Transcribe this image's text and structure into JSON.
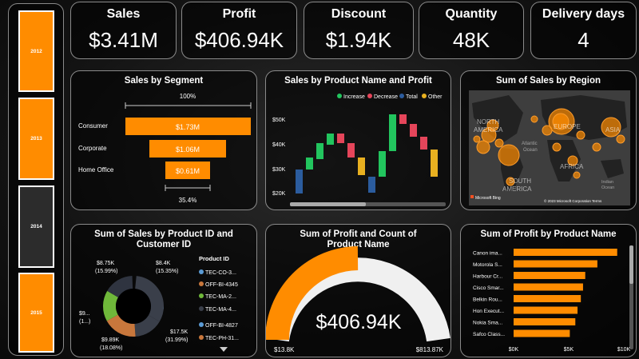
{
  "slicer": {
    "years": [
      {
        "label": "2012",
        "selected": true
      },
      {
        "label": "2013",
        "selected": true
      },
      {
        "label": "2014",
        "selected": false
      },
      {
        "label": "2015",
        "selected": true
      }
    ]
  },
  "kpis": [
    {
      "label": "Sales",
      "value": "$3.41M"
    },
    {
      "label": "Profit",
      "value": "$406.94K"
    },
    {
      "label": "Discount",
      "value": "$1.94K"
    },
    {
      "label": "Quantity",
      "value": "48K"
    },
    {
      "label": "Delivery days",
      "value": "4"
    }
  ],
  "colors": {
    "orange": "#ff8c00",
    "green": "#22c55e",
    "red": "#e5455a",
    "blue": "#2b5c9e",
    "yellow": "#e8b020",
    "grey": "#3a3f4a"
  },
  "segment_funnel": {
    "title": "Sales by Segment",
    "top_pct": "100%",
    "bottom_pct": "35.4%",
    "rows": [
      {
        "name": "Consumer",
        "label": "$1.73M",
        "value": 1.73
      },
      {
        "name": "Corporate",
        "label": "$1.06M",
        "value": 1.06
      },
      {
        "name": "Home Office",
        "label": "$0.61M",
        "value": 0.61
      }
    ]
  },
  "waterfall": {
    "title": "Sales by Product Name and Profit",
    "legend": [
      "Increase",
      "Decrease",
      "Total",
      "Other"
    ],
    "yticks": [
      "$50K",
      "$40K",
      "$30K",
      "$20K"
    ]
  },
  "region_map": {
    "title": "Sum of Sales by Region",
    "labels": [
      "NORTH",
      "AMERICA",
      "EUROPE",
      "ASIA",
      "AFRICA",
      "SOUTH",
      "AMERICA",
      "Atlantic",
      "Ocean",
      "Indian",
      "Ocean"
    ],
    "footer_left": "Microsoft Bing",
    "footer_right": "© 2023 Microsoft Corporation  Terms"
  },
  "donut": {
    "title": "Sum of Sales by Product ID and Customer ID",
    "legend_title": "Product ID",
    "legend": [
      "TEC-CO-3...",
      "OFF-BI-4345",
      "TEC-MA-2...",
      "TEC-MA-4...",
      "OFF-BI-4827",
      "TEC-PH-31..."
    ],
    "labels": [
      {
        "l1": "$8.75K",
        "l2": "(15.99%)"
      },
      {
        "l1": "$8.4K",
        "l2": "(15.35%)"
      },
      {
        "l1": "$9...",
        "l2": "(1...)"
      },
      {
        "l1": "$9.89K",
        "l2": "(18.08%)"
      },
      {
        "l1": "$17.5K",
        "l2": "(31.99%)"
      }
    ]
  },
  "gauge": {
    "title": "Sum of Profit and Count of Product Name",
    "value": "$406.94K",
    "min": "$13.8K",
    "max": "$813.87K"
  },
  "chart_data": {
    "type": "bar",
    "title": "Sum of Profit by Product Name",
    "categories": [
      "Canon ima...",
      "Motorola S...",
      "Harbour Cr...",
      "Cisco Smar...",
      "Belkin Rou...",
      "Hon Execut...",
      "Nokia Sma...",
      "Safco Class..."
    ],
    "values": [
      9.4,
      7.6,
      6.5,
      6.3,
      6.1,
      5.8,
      5.6,
      5.1
    ],
    "xticks": [
      "$0K",
      "$5K",
      "$10K"
    ],
    "xlim": [
      0,
      10
    ]
  }
}
